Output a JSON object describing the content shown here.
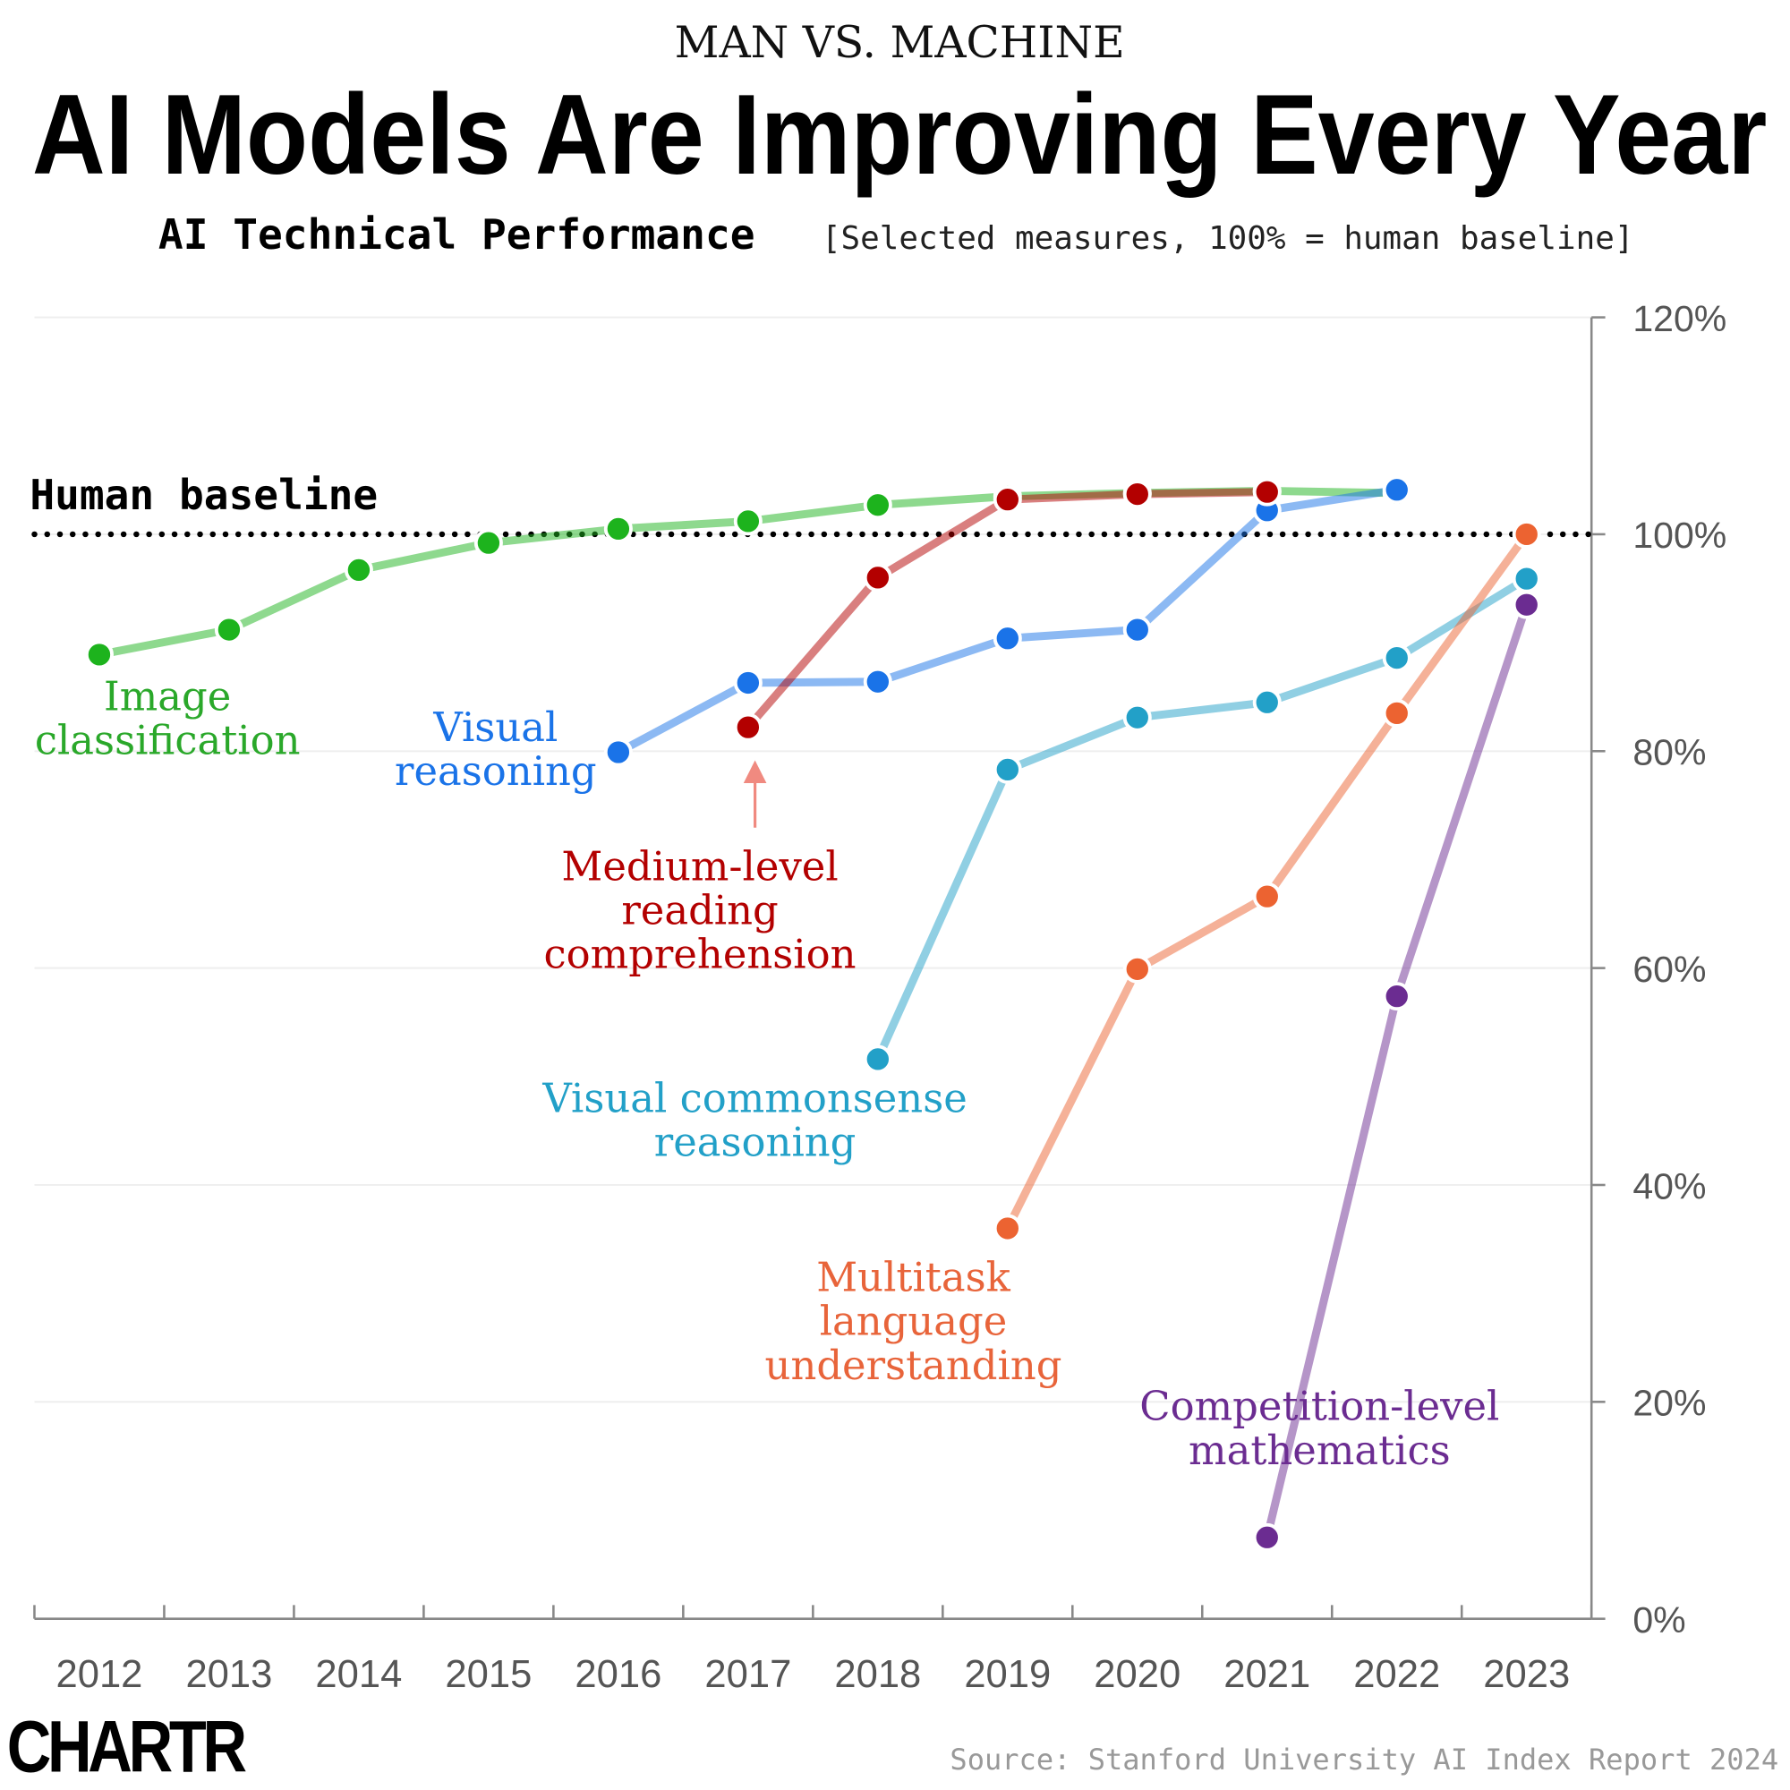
{
  "chart_data": {
    "type": "line",
    "kicker": "MAN VS. MACHINE",
    "title": "AI Models Are Improving Every Year",
    "subtitle": "AI Technical Performance",
    "subtitle_note": "[Selected measures, 100% = human baseline]",
    "baseline_label": "Human baseline",
    "baseline": 100,
    "categories": [
      "2012",
      "2013",
      "2014",
      "2015",
      "2016",
      "2017",
      "2018",
      "2019",
      "2020",
      "2021",
      "2022",
      "2023"
    ],
    "ylim": [
      0,
      120
    ],
    "yticks": [
      {
        "value": 0,
        "label": "0%"
      },
      {
        "value": 20,
        "label": "20%"
      },
      {
        "value": 40,
        "label": "40%"
      },
      {
        "value": 60,
        "label": "60%"
      },
      {
        "value": 80,
        "label": "80%"
      },
      {
        "value": 100,
        "label": "100%"
      },
      {
        "value": 120,
        "label": "120%"
      }
    ],
    "grid": true,
    "series": [
      {
        "name": "Image\nclassification",
        "color": "#1db31d",
        "values": [
          88.9,
          91.2,
          96.7,
          99.2,
          100.5,
          101.2,
          102.7,
          103.5,
          103.8,
          104,
          103.8,
          null
        ]
      },
      {
        "name": "Visual\nreasoning",
        "color": "#1a73e8",
        "values": [
          null,
          null,
          null,
          null,
          79.9,
          86.3,
          86.4,
          90.4,
          91.2,
          102.2,
          104.1,
          null
        ]
      },
      {
        "name": "Medium-level\nreading\ncomprehension",
        "color": "#b30000",
        "values": [
          null,
          null,
          null,
          null,
          null,
          82.2,
          96,
          103.2,
          103.7,
          103.9,
          null,
          null
        ]
      },
      {
        "name": "Visual commonsense\nreasoning",
        "color": "#22a0c8",
        "values": [
          null,
          null,
          null,
          null,
          null,
          null,
          51.6,
          78.3,
          83.1,
          84.5,
          88.6,
          95.9
        ]
      },
      {
        "name": "Multitask\nlanguage\nunderstanding",
        "color": "#ec6331",
        "values": [
          null,
          null,
          null,
          null,
          null,
          null,
          null,
          36,
          59.9,
          66.6,
          83.5,
          100
        ]
      },
      {
        "name": "Competition-level\nmathematics",
        "color": "#6b2c91",
        "values": [
          null,
          null,
          null,
          null,
          null,
          null,
          null,
          null,
          null,
          7.5,
          57.4,
          93.5
        ]
      }
    ],
    "logo": "CHARTR",
    "source": "Source: Stanford University AI Index Report 2024"
  }
}
